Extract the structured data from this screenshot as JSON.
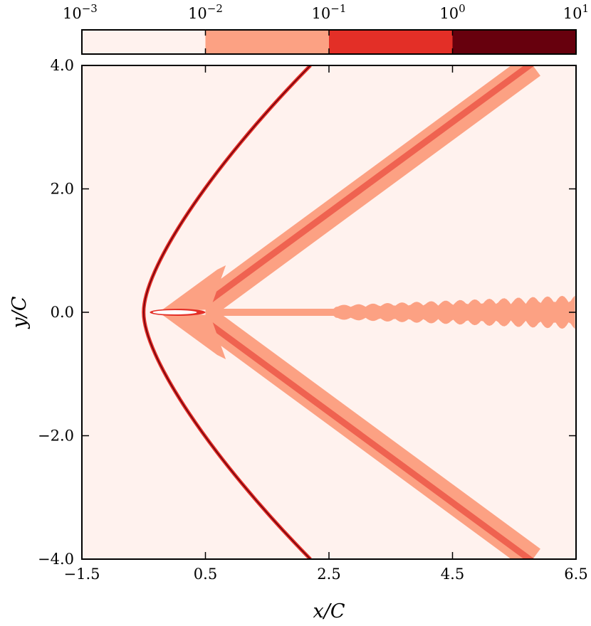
{
  "chart_data": {
    "type": "heatmap",
    "title": "",
    "xlabel": "x/C",
    "ylabel": "y/C",
    "xlim": [
      -1.5,
      6.5
    ],
    "ylim": [
      -4.0,
      4.0
    ],
    "x_ticks": [
      "−1.5",
      "0.5",
      "2.5",
      "4.5",
      "6.5"
    ],
    "x_tick_values": [
      -1.5,
      0.5,
      2.5,
      4.5,
      6.5
    ],
    "y_ticks": [
      "−4.0",
      "−2.0",
      "0.0",
      "2.0",
      "4.0"
    ],
    "y_tick_values": [
      -4.0,
      -2.0,
      0.0,
      2.0,
      4.0
    ],
    "colorbar": {
      "scale": "log",
      "placement": "top",
      "boundaries": [
        0.001,
        0.01,
        0.1,
        1,
        10
      ],
      "tick_labels": [
        {
          "base": "10",
          "exp": "−3"
        },
        {
          "base": "10",
          "exp": "−2"
        },
        {
          "base": "10",
          "exp": "−1"
        },
        {
          "base": "10",
          "exp": "0"
        },
        {
          "base": "10",
          "exp": "1"
        }
      ],
      "colors": [
        "#fff2ee",
        "#fca183",
        "#e32f27",
        "#67000d"
      ]
    },
    "background_level_color": "#fff2ee",
    "features": {
      "bow_shock": {
        "vertex": [
          -0.5,
          0.0
        ],
        "upper_exit": [
          2.2,
          4.0
        ],
        "lower_exit": [
          2.2,
          -4.0
        ],
        "colors": [
          "#e32f27",
          "#67000d"
        ]
      },
      "oblique_shock_upper": {
        "start": [
          0.5,
          0.1
        ],
        "end": [
          5.8,
          4.0
        ],
        "color": "#fca183",
        "core_color": "#e32f27"
      },
      "oblique_shock_lower": {
        "start": [
          0.5,
          -0.1
        ],
        "end": [
          5.8,
          -4.0
        ],
        "color": "#fca183",
        "core_color": "#e32f27"
      },
      "wake": {
        "x_start": 0.5,
        "x_end": 6.5,
        "color": "#fca183"
      },
      "airfoil": {
        "leading_edge": [
          -0.4,
          0.0
        ],
        "trailing_edge": [
          0.5,
          0.0
        ],
        "color": "#ffffff"
      }
    }
  }
}
